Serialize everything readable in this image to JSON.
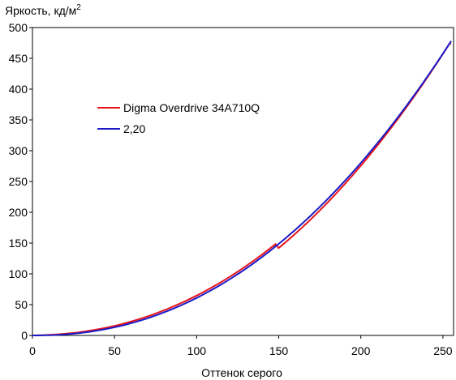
{
  "chart_data": {
    "type": "line",
    "ylabel_main": "Яркость, кд/м",
    "ylabel_sup": "2",
    "xlabel": "Оттенок серого",
    "xlim": [
      0,
      255
    ],
    "ylim": [
      0,
      500
    ],
    "x_ticks": [
      0,
      50,
      100,
      150,
      200,
      250
    ],
    "y_ticks": [
      0,
      50,
      100,
      150,
      200,
      250,
      300,
      350,
      400,
      450,
      500
    ],
    "grid": false,
    "legend_position": "upper-left inside plot",
    "series": [
      {
        "name": "Digma Overdrive 34A710Q",
        "color": "#e8141c",
        "x": [
          0,
          15,
          25,
          35,
          45,
          55,
          65,
          75,
          85,
          95,
          105,
          115,
          125,
          135,
          145,
          155,
          165,
          175,
          185,
          195,
          205,
          215,
          225,
          235,
          245,
          255
        ],
        "y": [
          0,
          1,
          3,
          7,
          11.5,
          18,
          25,
          33,
          42,
          53,
          65,
          78,
          93,
          109,
          128,
          148,
          168,
          190,
          213,
          238,
          265,
          295,
          327,
          361,
          399,
          470
        ]
      },
      {
        "name": "2,20",
        "color": "#1a1ac8",
        "x": [
          0,
          15,
          25,
          35,
          45,
          55,
          65,
          75,
          85,
          95,
          105,
          115,
          125,
          135,
          145,
          155,
          165,
          175,
          185,
          195,
          205,
          215,
          225,
          235,
          245,
          255
        ],
        "y": [
          0,
          1.3,
          3.8,
          7.7,
          13,
          19.9,
          28.3,
          38.3,
          50,
          63.4,
          78.5,
          95.4,
          114.1,
          134.6,
          156.9,
          181,
          207.1,
          235,
          264.8,
          296.6,
          330.3,
          366,
          403.6,
          443.3,
          484.9,
          475
        ]
      }
    ]
  }
}
